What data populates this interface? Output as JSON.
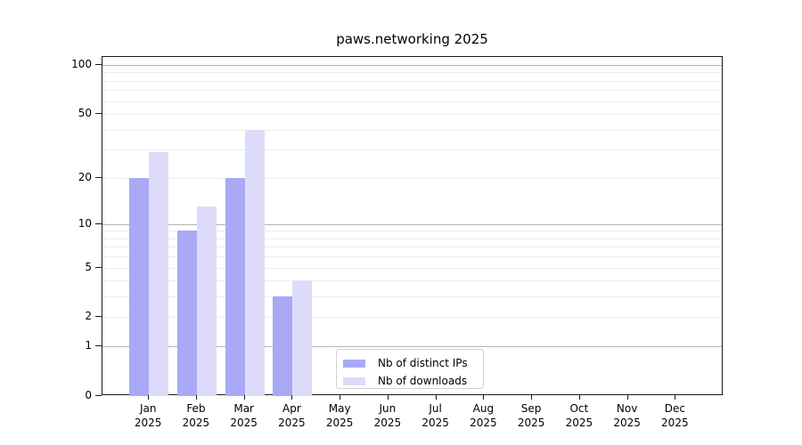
{
  "title": "paws.networking 2025",
  "chart_data": {
    "type": "bar",
    "title": "paws.networking 2025",
    "categories": [
      "Jan 2025",
      "Feb 2025",
      "Mar 2025",
      "Apr 2025",
      "May 2025",
      "Jun 2025",
      "Jul 2025",
      "Aug 2025",
      "Sep 2025",
      "Oct 2025",
      "Nov 2025",
      "Dec 2025"
    ],
    "x_axis": {
      "months": [
        "Jan",
        "Feb",
        "Mar",
        "Apr",
        "May",
        "Jun",
        "Jul",
        "Aug",
        "Sep",
        "Oct",
        "Nov",
        "Dec"
      ],
      "year": "2025"
    },
    "series": [
      {
        "name": "Nb of distinct IPs",
        "color": "#a9a9f5",
        "values": [
          20,
          9,
          20,
          3,
          0,
          0,
          0,
          0,
          0,
          0,
          0,
          0
        ]
      },
      {
        "name": "Nb of downloads",
        "color": "#dcdcfa",
        "values": [
          29,
          13,
          40,
          4,
          0,
          0,
          0,
          0,
          0,
          0,
          0,
          0
        ]
      }
    ],
    "xlabel": "",
    "ylabel": "",
    "y_axis": {
      "scale": "log1p",
      "tick_labels": [
        0,
        1,
        2,
        5,
        10,
        20,
        50,
        100
      ],
      "min": 0,
      "max": 112,
      "major_gridlines": [
        1,
        10,
        100
      ],
      "minor_gridlines": [
        2,
        3,
        4,
        5,
        6,
        7,
        8,
        9,
        20,
        30,
        40,
        50,
        60,
        70,
        80,
        90
      ]
    },
    "grid": true,
    "legend": {
      "position": "bottom-center",
      "entries": [
        "Nb of distinct IPs",
        "Nb of downloads"
      ]
    }
  },
  "colors": {
    "distinct_ips_bar": "#a9a9f5",
    "downloads_bar": "#dcdcfa",
    "major_gridline": "#b3b3b3",
    "minor_gridline": "#ececec",
    "axis": "#1a1a1a",
    "legend_border": "#d0d0d0",
    "background": "#ffffff"
  }
}
